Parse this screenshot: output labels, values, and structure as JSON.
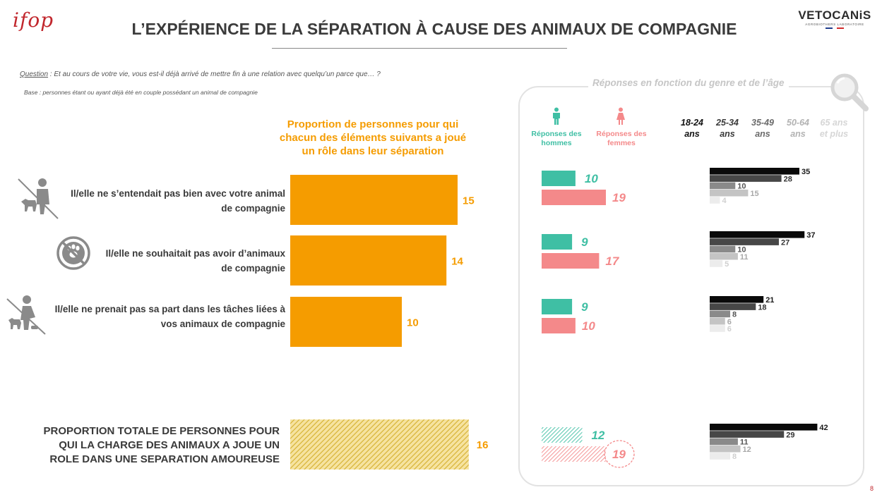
{
  "header": {
    "logo_left": "ifop",
    "title": "L’EXPÉRIENCE DE LA SÉPARATION À CAUSE DES ANIMAUX DE COMPAGNIE",
    "logo_right": "VETOCANiS",
    "logo_right_sub": "AGROBIOTHERS LABORATOIRE"
  },
  "question": {
    "label": "Question",
    "text": " : Et au cours de votre vie, vous est-il déjà arrivé de mettre fin à une relation avec quelqu’un parce que… ?",
    "base": "Base : personnes étant ou ayant déjà été en couple possédant un animal de compagnie"
  },
  "panel": {
    "title": "Réponses en fonction du genre et de l’âge",
    "men_label": [
      "Réponses des",
      "hommes"
    ],
    "women_label": [
      "Réponses des",
      "femmes"
    ],
    "age_groups": [
      [
        "18-24",
        "ans"
      ],
      [
        "25-34",
        "ans"
      ],
      [
        "35-49",
        "ans"
      ],
      [
        "50-64",
        "ans"
      ],
      [
        "65 ans",
        "et plus"
      ]
    ]
  },
  "colors": {
    "orange": "#f59c00",
    "hatch": "#e0c04a",
    "men": "#3fbfa4",
    "women": "#f4898a",
    "age": [
      "#0a0a0a",
      "#474747",
      "#8a8a8a",
      "#c4c4c4",
      "#ececec"
    ],
    "age_text": [
      "#1a1a1a",
      "#333333",
      "#555555",
      "#a8a8a8",
      "#d0d0d0"
    ]
  },
  "icons": [
    "person-with-dog-icon",
    "no-paw-icon",
    "person-feeding-dog-icon",
    "magnifier-icon",
    "man-icon",
    "woman-icon"
  ],
  "chart_data": {
    "type": "bar",
    "orientation": "horizontal",
    "title": [
      "Proportion de personnes pour qui",
      "chacun des éléments suivants a joué",
      "un rôle dans leur séparation"
    ],
    "categories": [
      [
        "Il/elle ne s’entendait pas bien avec votre animal",
        "de compagnie"
      ],
      [
        "Il/elle ne souhaitait pas avoir d’animaux",
        "de compagnie"
      ],
      [
        "Il/elle ne prenait pas sa part dans les tâches liées à",
        "vos animaux de compagnie"
      ]
    ],
    "values": [
      15,
      14,
      10
    ],
    "total": {
      "label": [
        "PROPORTION TOTALE DE PERSONNES POUR",
        "QUI LA CHARGE DES ANIMAUX A JOUE UN",
        "ROLE DANS UNE SEPARATION AMOUREUSE"
      ],
      "value": 16
    },
    "gender": {
      "men": [
        10,
        9,
        9,
        12
      ],
      "women": [
        19,
        17,
        10,
        19
      ]
    },
    "age": [
      [
        35,
        28,
        10,
        15,
        4
      ],
      [
        37,
        27,
        10,
        11,
        5
      ],
      [
        21,
        18,
        8,
        6,
        6
      ],
      [
        42,
        29,
        11,
        12,
        8
      ]
    ]
  },
  "page_number": "8"
}
